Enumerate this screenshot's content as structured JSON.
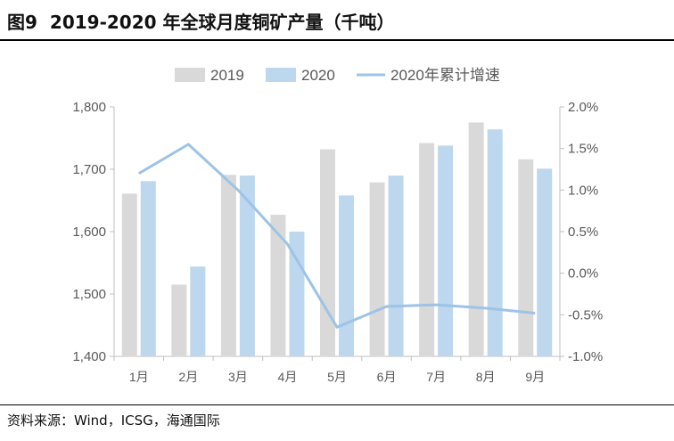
{
  "figure": {
    "number": "图9",
    "title": "2019-2020 年全球月度铜矿产量（千吨）",
    "source": "资料来源：Wind，ICSG，海通国际"
  },
  "colors": {
    "s2019": "#d9d9d9",
    "s2020": "#bdd7ee",
    "line": "#9dc3e6",
    "axis": "#bfbfbf",
    "text": "#595959"
  },
  "chart_data": {
    "type": "bar",
    "categories": [
      "1月",
      "2月",
      "3月",
      "4月",
      "5月",
      "6月",
      "7月",
      "8月",
      "9月"
    ],
    "series": [
      {
        "name": "2019",
        "type": "bar",
        "axis": "left",
        "values": [
          1661,
          1515,
          1691,
          1627,
          1732,
          1679,
          1742,
          1775,
          1716
        ]
      },
      {
        "name": "2020",
        "type": "bar",
        "axis": "left",
        "values": [
          1681,
          1544,
          1690,
          1600,
          1658,
          1690,
          1738,
          1764,
          1701
        ]
      },
      {
        "name": "2020年累计增速",
        "type": "line",
        "axis": "right",
        "values": [
          1.2,
          1.55,
          1.0,
          0.35,
          -0.65,
          -0.4,
          -0.38,
          -0.42,
          -0.48
        ]
      }
    ],
    "y_left": {
      "lim": [
        1400,
        1800
      ],
      "ticks": [
        1400,
        1500,
        1600,
        1700,
        1800
      ],
      "tick_labels": [
        "1,400",
        "1,500",
        "1,600",
        "1,700",
        "1,800"
      ]
    },
    "y_right": {
      "lim": [
        -1.0,
        2.0
      ],
      "ticks": [
        -1.0,
        -0.5,
        0.0,
        0.5,
        1.0,
        1.5,
        2.0
      ],
      "tick_labels": [
        "-1.0%",
        "-0.5%",
        "0.0%",
        "0.5%",
        "1.0%",
        "1.5%",
        "2.0%"
      ]
    },
    "legend_position": "top",
    "grid": false
  }
}
